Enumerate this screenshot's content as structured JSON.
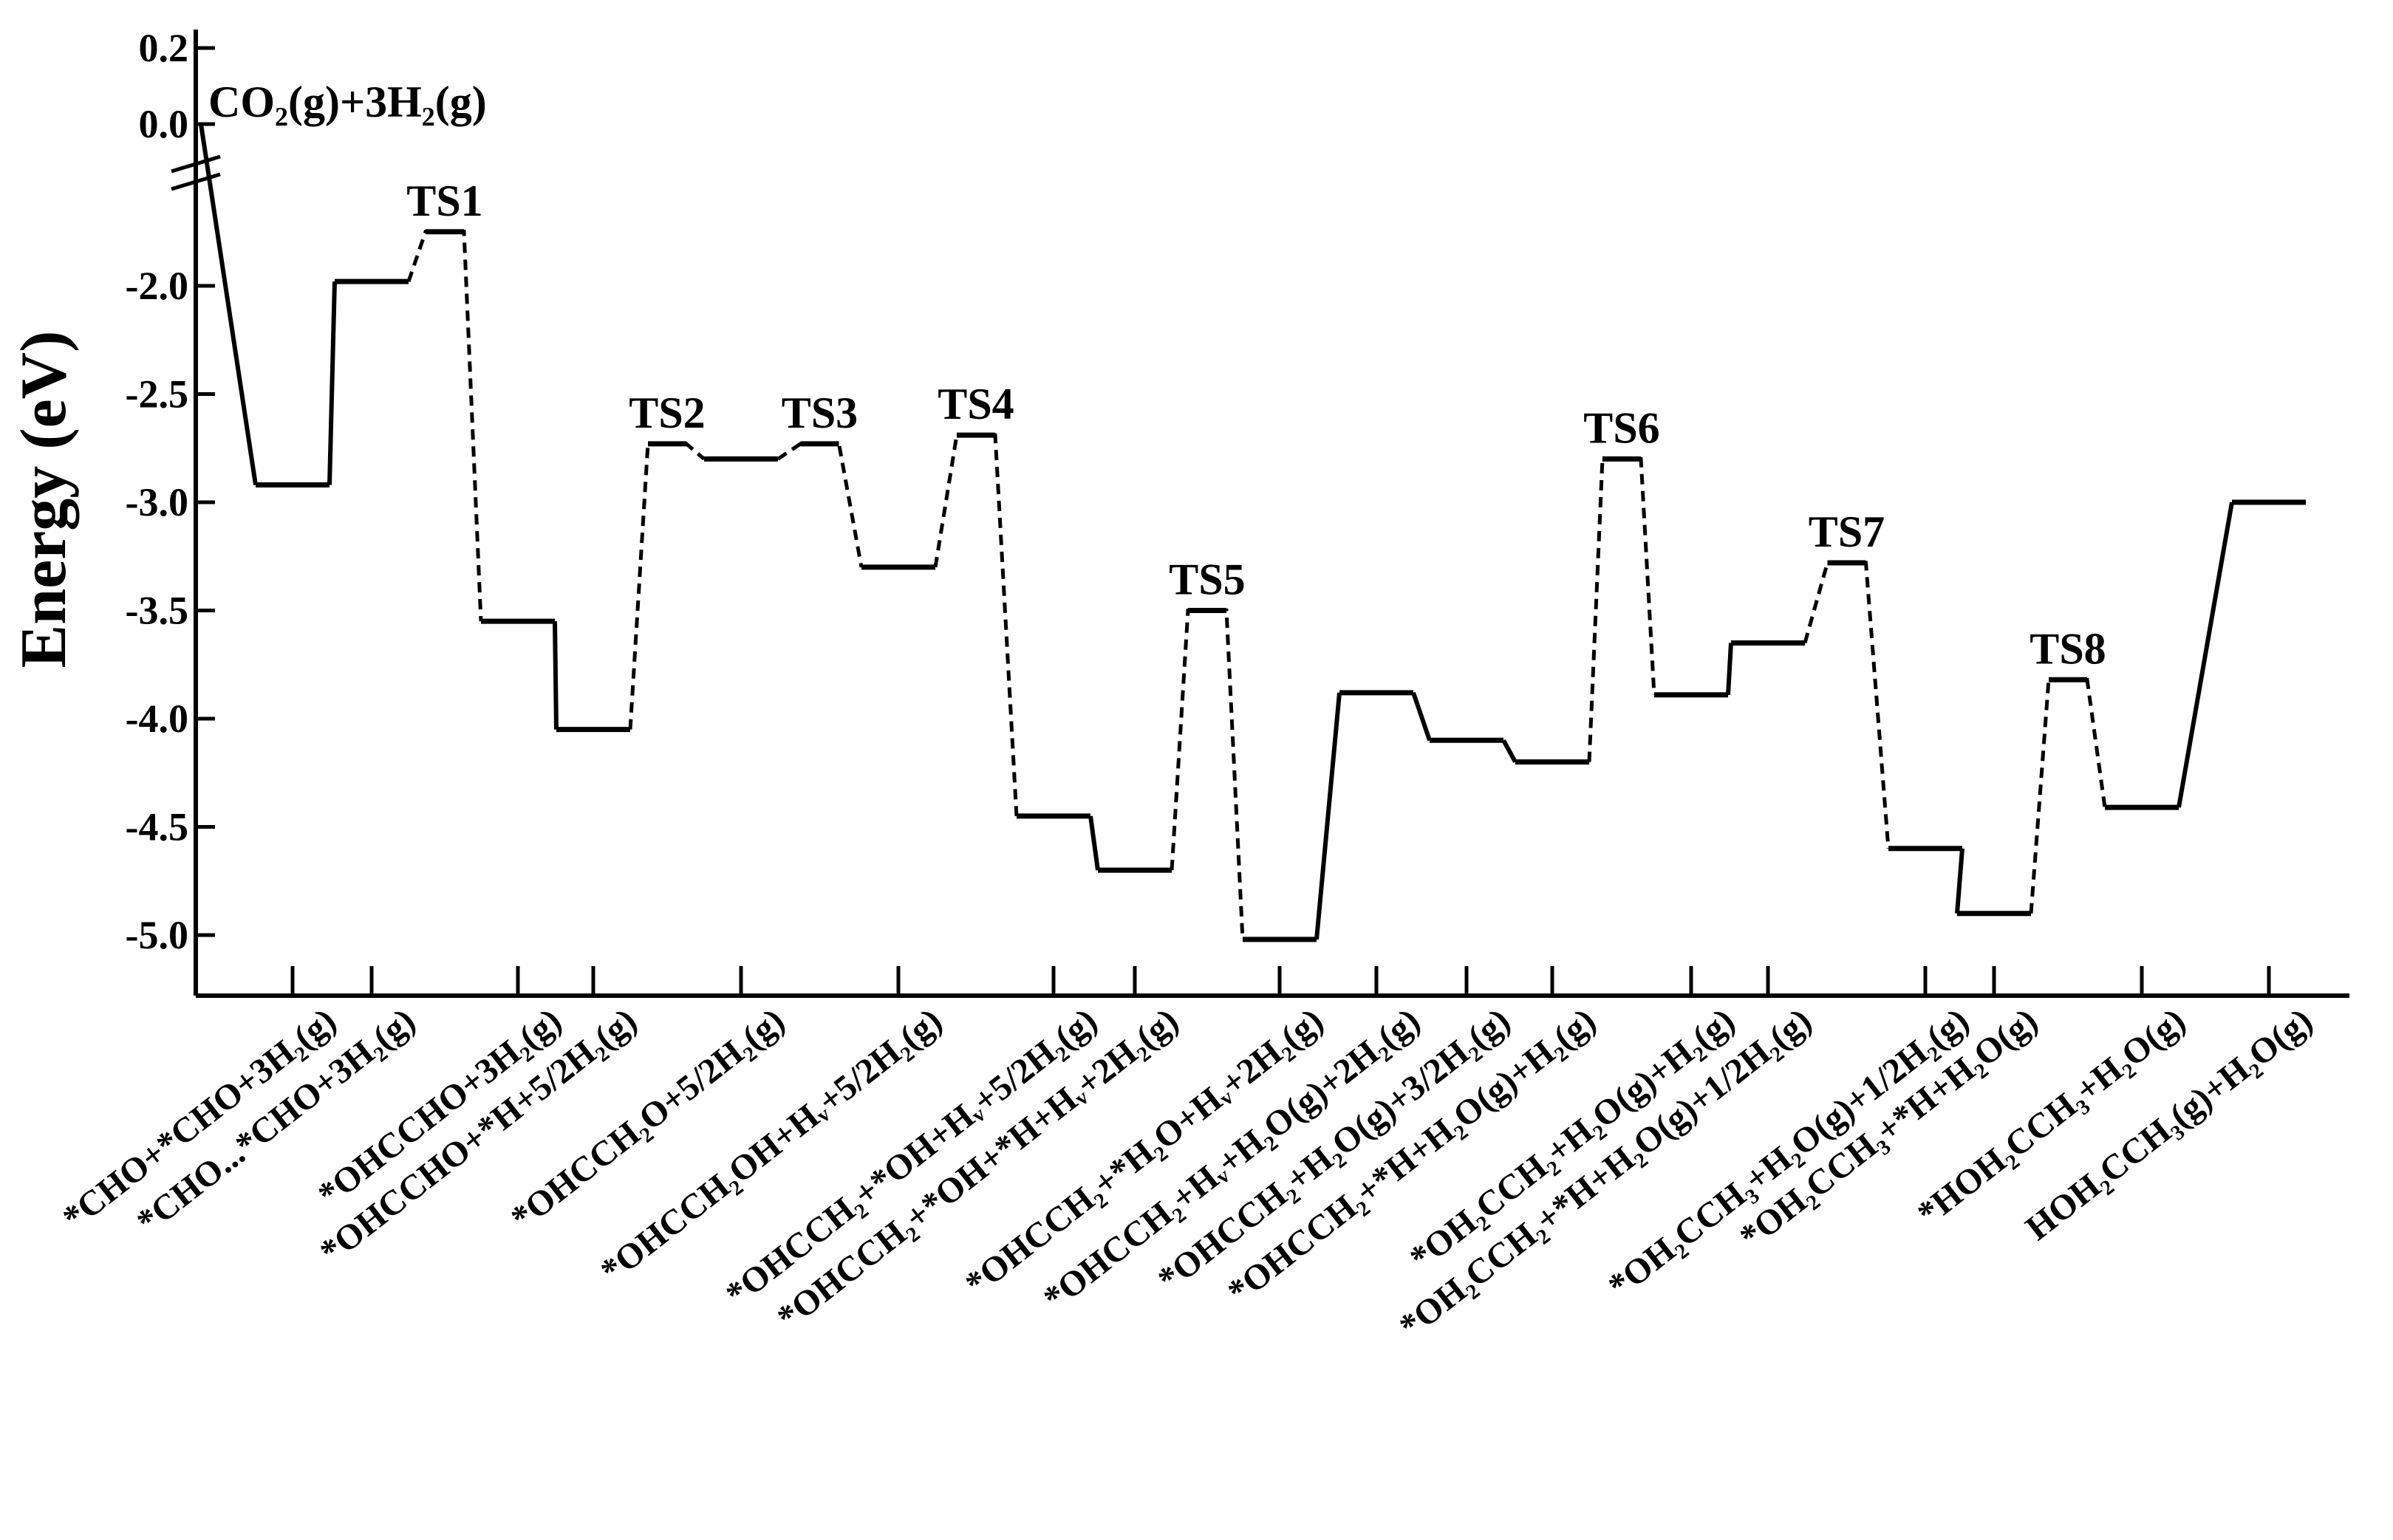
{
  "chart_data": {
    "type": "line",
    "ylabel": "Energy (eV)",
    "y_ticks": [
      "0.2",
      "0.0",
      "-2.0",
      "-2.5",
      "-3.0",
      "-3.5",
      "-4.0",
      "-4.5",
      "-5.0"
    ],
    "y_tick_values": [
      0.2,
      0.0,
      -2.0,
      -2.5,
      -3.0,
      -3.5,
      -4.0,
      -4.5,
      -5.0
    ],
    "axis_break": "between 0.0 and -2.0",
    "start_label": "CO₂(g)+3H₂(g)",
    "categories": [
      "*CHO+*CHO+3H₂(g)",
      "*CHO...*CHO+3H₂(g)",
      "*OHCCHO+3H₂(g)",
      "*OHCCHO+*H+5/2H₂(g)",
      "*OHCCH₂O+5/2H₂(g)",
      "*OHCCH₂OH+Hᵥ+5/2H₂(g)",
      "*OHCCH₂+*OH+Hᵥ+5/2H₂(g)",
      "*OHCCH₂+*OH+*H+Hᵥ+2H₂(g)",
      "*OHCCH₂+*H₂O+Hᵥ+2H₂(g)",
      "*OHCCH₂+Hᵥ+H₂O(g)+2H₂(g)",
      "*OHCCH₂+H₂O(g)+3/2H₂(g)",
      "*OHCCH₂+*H+H₂O(g)+H₂(g)",
      "*OH₂CCH₂+H₂O(g)+H₂(g)",
      "*OH₂CCH₂+*H+H₂O(g)+1/2H₂(g)",
      "*OH₂CCH₃+H₂O(g)+1/2H₂(g)",
      "*OH₂CCH₃+*H+H₂O(g)",
      "*HOH₂CCH₃+H₂O(g)",
      "HOH₂CCH₃(g)+H₂O(g)"
    ],
    "levels": [
      -2.92,
      -1.98,
      -3.55,
      -4.05,
      -2.8,
      -3.3,
      -4.45,
      -4.7,
      -5.02,
      -3.88,
      -4.1,
      -4.2,
      -3.89,
      -3.65,
      -4.6,
      -4.9,
      -4.41,
      -3.0
    ],
    "transition_states": [
      {
        "name": "TS1",
        "between": [
          1,
          2
        ],
        "energy": -1.75
      },
      {
        "name": "TS2",
        "between": [
          3,
          4
        ],
        "energy": -2.73
      },
      {
        "name": "TS3",
        "between": [
          4,
          5
        ],
        "energy": -2.73
      },
      {
        "name": "TS4",
        "between": [
          5,
          6
        ],
        "energy": -2.69
      },
      {
        "name": "TS5",
        "between": [
          7,
          8
        ],
        "energy": -3.5
      },
      {
        "name": "TS6",
        "between": [
          11,
          12
        ],
        "energy": -2.8
      },
      {
        "name": "TS7",
        "between": [
          13,
          14
        ],
        "energy": -3.28
      },
      {
        "name": "TS8",
        "between": [
          15,
          16
        ],
        "energy": -3.82
      }
    ],
    "start_energy": 0.0,
    "grid": false,
    "legend": "none"
  }
}
